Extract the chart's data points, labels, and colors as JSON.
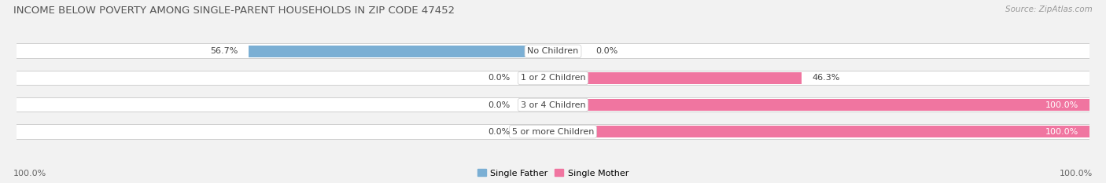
{
  "title": "INCOME BELOW POVERTY AMONG SINGLE-PARENT HOUSEHOLDS IN ZIP CODE 47452",
  "source": "Source: ZipAtlas.com",
  "categories": [
    "No Children",
    "1 or 2 Children",
    "3 or 4 Children",
    "5 or more Children"
  ],
  "single_father": [
    56.7,
    0.0,
    0.0,
    0.0
  ],
  "single_mother": [
    0.0,
    46.3,
    100.0,
    100.0
  ],
  "father_color": "#7bafd4",
  "mother_color": "#f075a0",
  "father_color_light": "#aecde8",
  "mother_color_light": "#f5aac4",
  "bg_color": "#f2f2f2",
  "bar_bg_color": "#e2e2e2",
  "bar_shadow_color": "#d0d0d0",
  "title_fontsize": 9.5,
  "source_fontsize": 7.5,
  "label_fontsize": 8,
  "bar_label_fontsize": 8,
  "axis_label_left": "100.0%",
  "axis_label_right": "100.0%",
  "x_min": -100,
  "x_max": 100
}
